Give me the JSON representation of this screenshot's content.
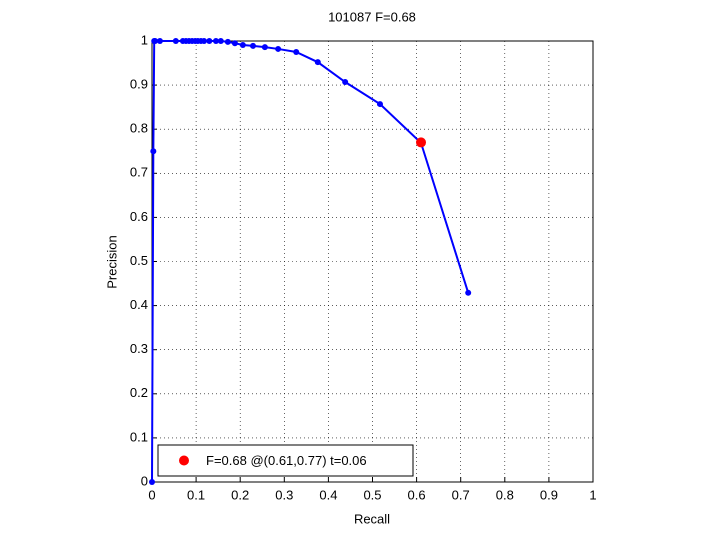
{
  "chart_data": {
    "type": "line",
    "title": "101087 F=0.68",
    "x_label": "Recall",
    "y_label": "Precision",
    "xlim": [
      0,
      1
    ],
    "ylim": [
      0,
      1
    ],
    "xticks": [
      0,
      0.1,
      0.2,
      0.3,
      0.4,
      0.5,
      0.6,
      0.7,
      0.8,
      0.9,
      1
    ],
    "yticks": [
      0,
      0.1,
      0.2,
      0.3,
      0.4,
      0.5,
      0.6,
      0.7,
      0.8,
      0.9,
      1
    ],
    "grid": true,
    "legend": "lower left",
    "series": [
      {
        "color": "#0000ff",
        "line": true,
        "x": [
          0,
          0.003,
          0.005,
          0.007,
          0.018,
          0.054,
          0.07,
          0.077,
          0.084,
          0.091,
          0.098,
          0.104,
          0.111,
          0.118,
          0.13,
          0.145,
          0.156,
          0.172,
          0.188,
          0.206,
          0.229,
          0.256,
          0.286,
          0.327,
          0.376,
          0.438,
          0.517,
          0.61,
          0.717
        ],
        "values": [
          0,
          0.75,
          1,
          1,
          1,
          1,
          1,
          1,
          1,
          1,
          1,
          1,
          1,
          1,
          1,
          1,
          1,
          0.998,
          0.995,
          0.991,
          0.989,
          0.986,
          0.982,
          0.975,
          0.952,
          0.907,
          0.857,
          0.769,
          0.429
        ]
      },
      {
        "name": "F=0.68 @(0.61,0.77) t=0.06",
        "color": "#ff0000",
        "line": false,
        "x": [
          0.61
        ],
        "values": [
          0.77
        ]
      }
    ]
  }
}
